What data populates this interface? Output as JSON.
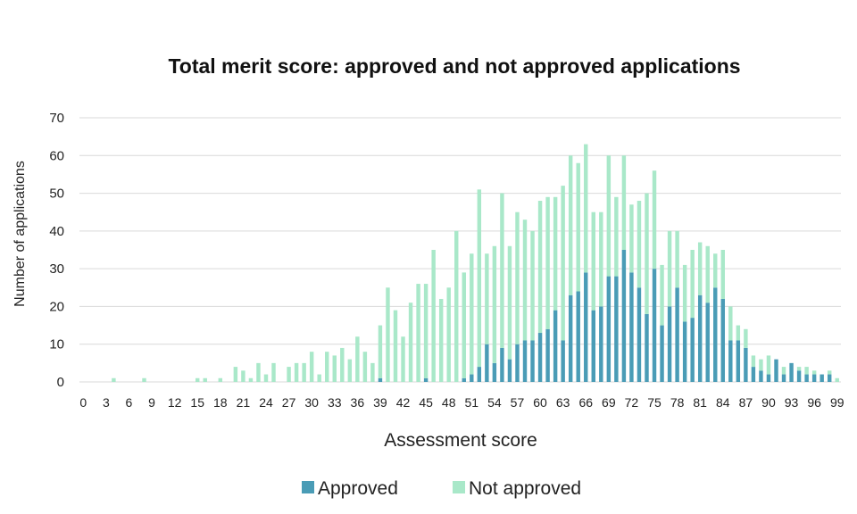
{
  "chart_data": {
    "type": "bar",
    "title": "Total merit score: approved and not approved applications",
    "xlabel": "Assessment score",
    "ylabel": "Number of applications",
    "ylim": [
      0,
      70
    ],
    "yticks": [
      0,
      10,
      20,
      30,
      40,
      50,
      60,
      70
    ],
    "grid": true,
    "legend_position": "bottom",
    "stacked": true,
    "x": [
      0,
      1,
      2,
      3,
      4,
      5,
      6,
      7,
      8,
      9,
      10,
      11,
      12,
      13,
      14,
      15,
      16,
      17,
      18,
      19,
      20,
      21,
      22,
      23,
      24,
      25,
      26,
      27,
      28,
      29,
      30,
      31,
      32,
      33,
      34,
      35,
      36,
      37,
      38,
      39,
      40,
      41,
      42,
      43,
      44,
      45,
      46,
      47,
      48,
      49,
      50,
      51,
      52,
      53,
      54,
      55,
      56,
      57,
      58,
      59,
      60,
      61,
      62,
      63,
      64,
      65,
      66,
      67,
      68,
      69,
      70,
      71,
      72,
      73,
      74,
      75,
      76,
      77,
      78,
      79,
      80,
      81,
      82,
      83,
      84,
      85,
      86,
      87,
      88,
      89,
      90,
      91,
      92,
      93,
      94,
      95,
      96,
      97,
      98,
      99
    ],
    "x_tick_labels": [
      "0",
      "3",
      "6",
      "9",
      "12",
      "15",
      "18",
      "21",
      "24",
      "27",
      "30",
      "33",
      "36",
      "39",
      "42",
      "45",
      "48",
      "51",
      "54",
      "57",
      "60",
      "63",
      "66",
      "69",
      "72",
      "75",
      "78",
      "81",
      "84",
      "87",
      "90",
      "93",
      "96",
      "99"
    ],
    "series": [
      {
        "name": "Approved",
        "color": "#4a9cb6",
        "values": [
          0,
          0,
          0,
          0,
          0,
          0,
          0,
          0,
          0,
          0,
          0,
          0,
          0,
          0,
          0,
          0,
          0,
          0,
          0,
          0,
          0,
          0,
          0,
          0,
          0,
          0,
          0,
          0,
          0,
          0,
          0,
          0,
          0,
          0,
          0,
          0,
          0,
          0,
          0,
          1,
          0,
          0,
          0,
          0,
          0,
          1,
          0,
          0,
          0,
          0,
          1,
          2,
          4,
          10,
          5,
          9,
          6,
          10,
          11,
          11,
          13,
          14,
          19,
          11,
          23,
          24,
          29,
          19,
          20,
          28,
          28,
          35,
          29,
          25,
          18,
          30,
          15,
          20,
          25,
          16,
          17,
          23,
          21,
          25,
          22,
          11,
          11,
          9,
          4,
          3,
          2,
          6,
          2,
          5,
          3,
          2,
          2,
          2,
          2,
          0
        ]
      },
      {
        "name": "Not approved",
        "color": "#a9e8c9",
        "values": [
          0,
          0,
          0,
          0,
          1,
          0,
          0,
          0,
          1,
          0,
          0,
          0,
          0,
          0,
          0,
          1,
          1,
          0,
          1,
          0,
          4,
          3,
          1,
          5,
          2,
          5,
          0,
          4,
          5,
          5,
          8,
          2,
          8,
          7,
          9,
          6,
          12,
          8,
          5,
          14,
          25,
          19,
          12,
          21,
          26,
          25,
          35,
          22,
          25,
          40,
          28,
          32,
          47,
          24,
          31,
          41,
          30,
          35,
          32,
          29,
          35,
          35,
          30,
          41,
          37,
          34,
          34,
          26,
          25,
          32,
          21,
          25,
          18,
          23,
          32,
          26,
          16,
          20,
          15,
          15,
          18,
          14,
          15,
          9,
          13,
          9,
          4,
          5,
          3,
          3,
          5,
          0,
          2,
          0,
          1,
          2,
          1,
          0,
          1,
          1
        ]
      }
    ]
  }
}
